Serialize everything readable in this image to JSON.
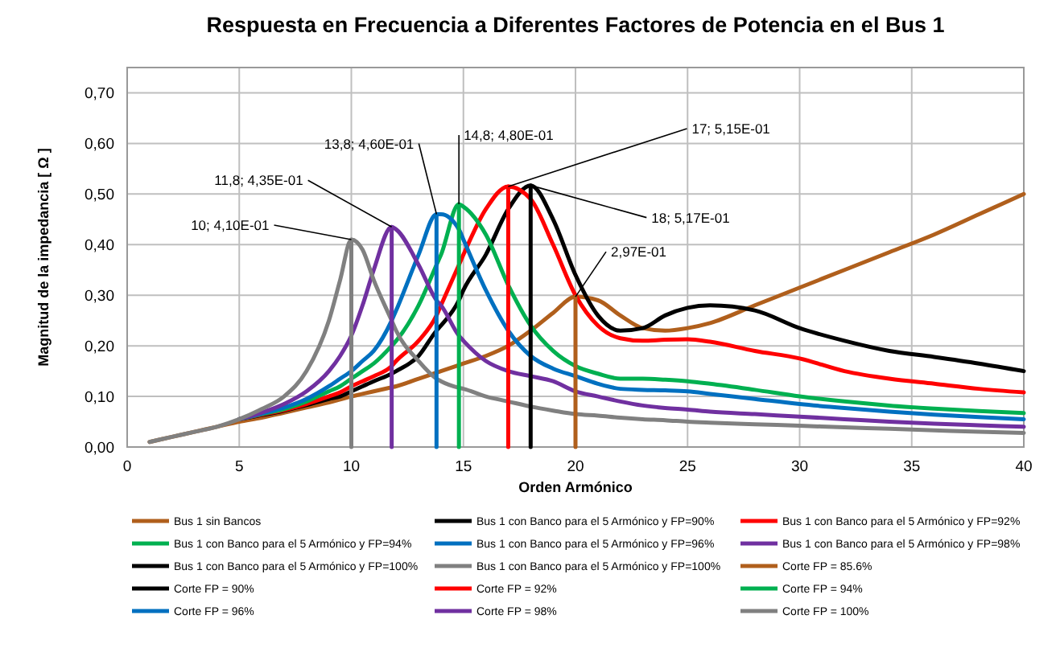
{
  "chart_data": {
    "type": "line",
    "title": "Respuesta en Frecuencia a Diferentes Factores de Potencia en el Bus 1",
    "xlabel": "Orden Armónico",
    "ylabel": "Magnitud de la impedancia [ Ω ]",
    "x": [
      1,
      2,
      3,
      4,
      5,
      6,
      7,
      8,
      9,
      9.5,
      10,
      10.5,
      11,
      11.8,
      12,
      13,
      13.8,
      14,
      14.8,
      15,
      16,
      17,
      18,
      19,
      20,
      21,
      22,
      23,
      24,
      25,
      26,
      28,
      30,
      32,
      34,
      36,
      38,
      40
    ],
    "xlim": [
      0,
      40
    ],
    "xticks": [
      0,
      5,
      10,
      15,
      20,
      25,
      30,
      35,
      40
    ],
    "ylim": [
      0,
      0.75
    ],
    "yticks": [
      {
        "value": 0,
        "label": "0,00"
      },
      {
        "value": 0.1,
        "label": "0,10"
      },
      {
        "value": 0.2,
        "label": "0,20"
      },
      {
        "value": 0.3,
        "label": "0,30"
      },
      {
        "value": 0.4,
        "label": "0,40"
      },
      {
        "value": 0.5,
        "label": "0,50"
      },
      {
        "value": 0.6,
        "label": "0,60"
      },
      {
        "value": 0.7,
        "label": "0,70"
      }
    ],
    "grid": true,
    "legend": "bottom",
    "series": [
      {
        "name": "Bus 1 sin Bancos",
        "color": "#b05f1c",
        "values": [
          0.01,
          0.02,
          0.03,
          0.04,
          0.05,
          0.058,
          0.068,
          0.078,
          0.088,
          0.094,
          0.1,
          0.105,
          0.11,
          0.118,
          0.12,
          0.135,
          0.147,
          0.15,
          0.162,
          0.165,
          0.18,
          0.2,
          0.23,
          0.265,
          0.297,
          0.29,
          0.26,
          0.235,
          0.23,
          0.235,
          0.245,
          0.28,
          0.315,
          0.35,
          0.385,
          0.42,
          0.46,
          0.5
        ]
      },
      {
        "name": "Bus 1 con Banco para el 5 Armónico y FP=90%",
        "color": "#000000",
        "values": [
          null,
          null,
          null,
          null,
          0.055,
          0.063,
          0.072,
          0.083,
          0.095,
          0.1,
          0.11,
          0.12,
          0.13,
          0.145,
          0.15,
          0.18,
          0.23,
          0.24,
          0.29,
          0.31,
          0.38,
          0.47,
          0.517,
          0.45,
          0.34,
          0.26,
          0.23,
          0.235,
          0.26,
          0.275,
          0.28,
          0.27,
          0.235,
          0.21,
          0.19,
          0.178,
          0.165,
          0.15
        ]
      },
      {
        "name": "Bus 1 con Banco para el 5 Armónico y FP=92%",
        "color": "#ff0000",
        "values": [
          null,
          null,
          null,
          null,
          0.055,
          0.064,
          0.073,
          0.085,
          0.1,
          0.108,
          0.12,
          0.13,
          0.14,
          0.16,
          0.17,
          0.21,
          0.26,
          0.28,
          0.36,
          0.38,
          0.47,
          0.515,
          0.49,
          0.4,
          0.3,
          0.24,
          0.215,
          0.21,
          0.212,
          0.213,
          0.208,
          0.19,
          0.175,
          0.15,
          0.135,
          0.125,
          0.115,
          0.108
        ]
      },
      {
        "name": "Bus 1 con Banco para el 5 Armónico y FP=94%",
        "color": "#00b050",
        "values": [
          null,
          null,
          null,
          null,
          0.055,
          0.065,
          0.075,
          0.09,
          0.11,
          0.12,
          0.135,
          0.15,
          0.165,
          0.2,
          0.21,
          0.28,
          0.36,
          0.38,
          0.48,
          0.475,
          0.42,
          0.32,
          0.24,
          0.19,
          0.16,
          0.145,
          0.135,
          0.135,
          0.133,
          0.13,
          0.125,
          0.113,
          0.1,
          0.09,
          0.082,
          0.076,
          0.071,
          0.067
        ]
      },
      {
        "name": "Bus 1 con Banco para el 5 Armónico y FP=96%",
        "color": "#0070c0",
        "values": [
          null,
          null,
          null,
          null,
          0.055,
          0.066,
          0.078,
          0.095,
          0.12,
          0.135,
          0.15,
          0.17,
          0.19,
          0.25,
          0.27,
          0.38,
          0.46,
          0.46,
          0.43,
          0.41,
          0.31,
          0.23,
          0.18,
          0.155,
          0.14,
          0.125,
          0.115,
          0.113,
          0.112,
          0.11,
          0.105,
          0.095,
          0.085,
          0.077,
          0.07,
          0.064,
          0.059,
          0.055
        ]
      },
      {
        "name": "Bus 1 con Banco para el 5 Armónico y FP=98%",
        "color": "#7030a0",
        "values": [
          null,
          null,
          null,
          null,
          0.055,
          0.068,
          0.085,
          0.11,
          0.15,
          0.18,
          0.22,
          0.28,
          0.35,
          0.435,
          0.43,
          0.36,
          0.29,
          0.28,
          0.22,
          0.21,
          0.17,
          0.15,
          0.14,
          0.13,
          0.11,
          0.1,
          0.09,
          0.082,
          0.077,
          0.074,
          0.07,
          0.065,
          0.06,
          0.055,
          0.05,
          0.046,
          0.043,
          0.04
        ]
      },
      {
        "name": "Bus 1 con Banco para el 5 Armónico y FP=100%",
        "color": "#000000",
        "values": [
          null,
          null,
          null,
          null,
          null,
          null,
          null,
          null,
          null,
          null,
          null,
          null,
          null,
          null,
          null,
          null,
          null,
          null,
          null,
          null,
          null,
          null,
          null,
          null,
          null,
          null,
          null,
          null,
          null,
          null,
          null,
          null,
          null,
          null,
          null,
          null,
          null,
          null
        ]
      },
      {
        "name": "Bus 1 con Banco para el 5 Armónico y FP=100%",
        "color": "#808080",
        "values": [
          0.01,
          0.02,
          0.03,
          0.04,
          0.055,
          0.075,
          0.1,
          0.15,
          0.25,
          0.33,
          0.41,
          0.39,
          0.33,
          0.25,
          0.23,
          0.17,
          0.135,
          0.13,
          0.117,
          0.115,
          0.1,
          0.09,
          0.08,
          0.072,
          0.065,
          0.062,
          0.058,
          0.055,
          0.053,
          0.05,
          0.048,
          0.045,
          0.042,
          0.039,
          0.036,
          0.033,
          0.03,
          0.028
        ]
      },
      {
        "name": "Corte FP = 85.6%",
        "color": "#b05f1c",
        "x": [
          20,
          20
        ],
        "values": [
          0,
          0.297
        ]
      },
      {
        "name": "Corte FP = 90%",
        "color": "#000000",
        "x": [
          18,
          18
        ],
        "values": [
          0,
          0.517
        ]
      },
      {
        "name": "Corte FP = 92%",
        "color": "#ff0000",
        "x": [
          17,
          17
        ],
        "values": [
          0,
          0.515
        ]
      },
      {
        "name": "Corte FP = 94%",
        "color": "#00b050",
        "x": [
          14.8,
          14.8
        ],
        "values": [
          0,
          0.48
        ]
      },
      {
        "name": "Corte FP = 96%",
        "color": "#0070c0",
        "x": [
          13.8,
          13.8
        ],
        "values": [
          0,
          0.46
        ]
      },
      {
        "name": "Corte FP = 98%",
        "color": "#7030a0",
        "x": [
          11.8,
          11.8
        ],
        "values": [
          0,
          0.435
        ]
      },
      {
        "name": "Corte FP = 100%",
        "color": "#808080",
        "x": [
          10,
          10
        ],
        "values": [
          0,
          0.41
        ]
      }
    ],
    "annotations": [
      {
        "text": "10; 4,10E-01",
        "x": 10,
        "y": 0.41
      },
      {
        "text": "11,8; 4,35E-01",
        "x": 11.8,
        "y": 0.435
      },
      {
        "text": "13,8; 4,60E-01",
        "x": 13.8,
        "y": 0.46
      },
      {
        "text": "14,8; 4,80E-01",
        "x": 14.8,
        "y": 0.48
      },
      {
        "text": "17; 5,15E-01",
        "x": 17,
        "y": 0.515
      },
      {
        "text": "18; 5,17E-01",
        "x": 18,
        "y": 0.517
      },
      {
        "text": "2,97E-01",
        "x": 20,
        "y": 0.297
      }
    ]
  }
}
